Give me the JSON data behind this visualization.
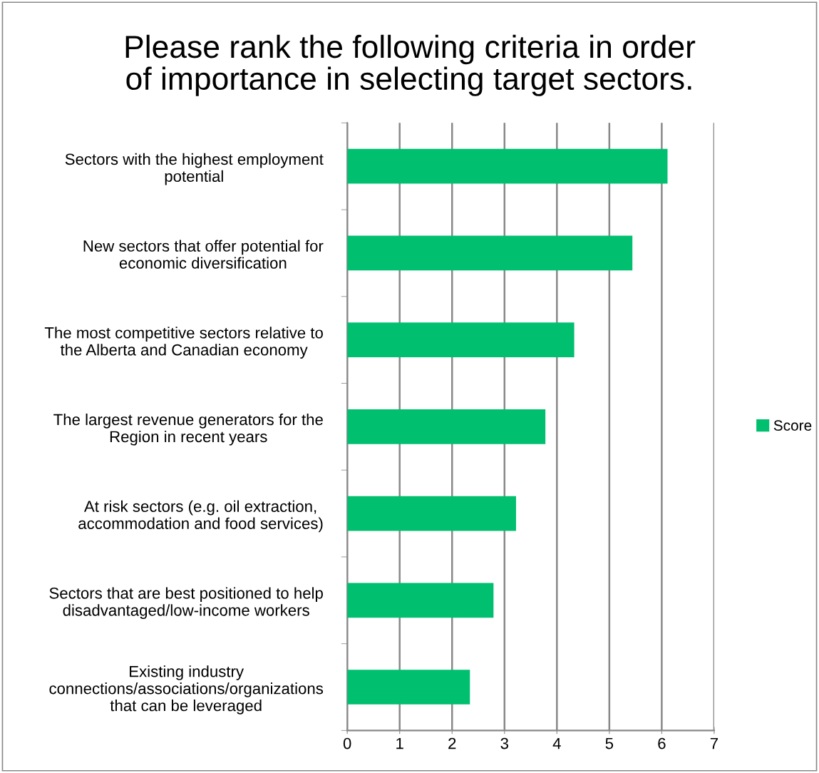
{
  "chart_data": {
    "type": "bar",
    "orientation": "horizontal",
    "title": "Please rank the following criteria in order\nof importance in selecting target sectors.",
    "categories": [
      "Sectors with the highest employment\npotential",
      "New sectors that offer potential for\neconomic diversification",
      "The most competitive sectors relative to\nthe Alberta and Canadian economy",
      "The largest revenue generators for the\nRegion in recent years",
      "At risk sectors (e.g. oil extraction,\naccommodation and food services)",
      "Sectors that are best positioned to help\ndisadvantaged/low-income workers",
      "Existing industry\nconnections/associations/organizations\nthat can be leveraged"
    ],
    "series": [
      {
        "name": "Score",
        "color": "#00bf6f",
        "values": [
          6.11,
          5.44,
          4.33,
          3.78,
          3.22,
          2.79,
          2.34
        ]
      }
    ],
    "xlim": [
      0,
      7
    ],
    "xticks": [
      0,
      1,
      2,
      3,
      4,
      5,
      6,
      7
    ],
    "grid": "x",
    "legend": "right"
  }
}
